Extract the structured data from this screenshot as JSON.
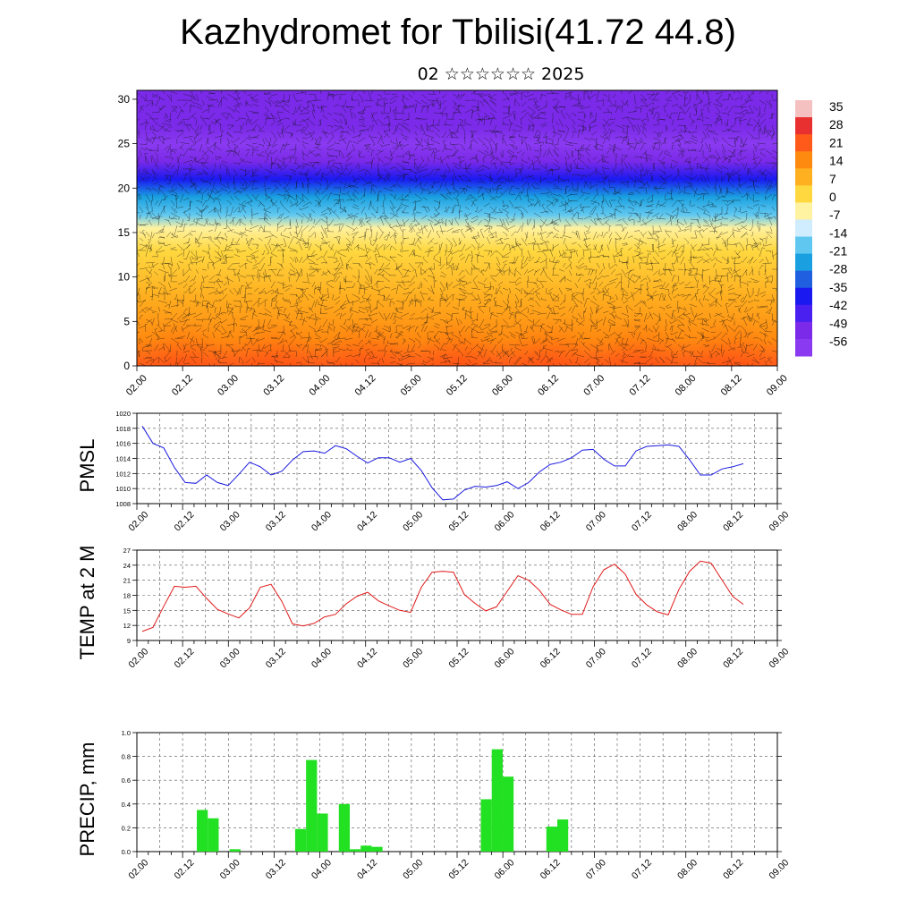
{
  "header": {
    "title": "Kazhydromet for Tbilisi(41.72 44.8)",
    "subtitle": "02 ☆☆☆☆☆☆ 2025"
  },
  "x_tick_labels": [
    "02.00",
    "02.12",
    "03.00",
    "03.12",
    "04.00",
    "04.12",
    "05.00",
    "05.12",
    "06.00",
    "06.12",
    "07.00",
    "07.12",
    "08.00",
    "08.12",
    "09.00"
  ],
  "chart_data": [
    {
      "type": "heatmap",
      "title": "",
      "xlabel": "",
      "ylabel": "",
      "ylim": [
        0,
        31
      ],
      "y_ticks": [
        0,
        5,
        10,
        15,
        20,
        25,
        30
      ],
      "colorbar_labels": [
        "35",
        "28",
        "21",
        "14",
        "7",
        "0",
        "-7",
        "-14",
        "-21",
        "-28",
        "-35",
        "-42",
        "-49",
        "-56"
      ],
      "colorbar_colors": [
        "#f4c0c0",
        "#e83030",
        "#ff5a1a",
        "#ff8a10",
        "#ffb020",
        "#ffd840",
        "#fff2a0",
        "#d0ecff",
        "#60c8f0",
        "#1aa0e0",
        "#2060e0",
        "#1a1af0",
        "#4a20f0",
        "#7a2ae8",
        "#8a3af0"
      ],
      "profile_by_height": [
        {
          "z": 0,
          "t": 26
        },
        {
          "z": 3,
          "t": 20
        },
        {
          "z": 8,
          "t": 11
        },
        {
          "z": 13,
          "t": 2
        },
        {
          "z": 15.5,
          "t": -6
        },
        {
          "z": 17,
          "t": -16
        },
        {
          "z": 19,
          "t": -28
        },
        {
          "z": 21,
          "t": -42
        },
        {
          "z": 23,
          "t": -55
        },
        {
          "z": 25,
          "t": -60
        },
        {
          "z": 27,
          "t": -58
        },
        {
          "z": 29,
          "t": -55
        },
        {
          "z": 31,
          "t": -52
        }
      ],
      "daytime_peaks": [
        "02.12",
        "03.12",
        "04.12",
        "05.12",
        "06.12",
        "07.12",
        "08.12"
      ],
      "wind_barbs": true
    },
    {
      "type": "line",
      "ylabel": "PMSL",
      "ylim": [
        1008,
        1020
      ],
      "y_ticks": [
        1008,
        1010,
        1012,
        1014,
        1016,
        1018,
        1020
      ],
      "color": "#1a1ae0",
      "x_start": "02.00",
      "x_step_hours": 3,
      "values": [
        1018.3,
        1016.0,
        1015.4,
        1012.8,
        1010.8,
        1010.7,
        1011.8,
        1010.8,
        1010.4,
        1011.9,
        1013.5,
        1012.9,
        1011.8,
        1012.3,
        1013.8,
        1014.9,
        1015.0,
        1014.7,
        1015.7,
        1015.3,
        1014.3,
        1013.4,
        1014.1,
        1014.1,
        1013.5,
        1014.0,
        1012.4,
        1010.1,
        1008.5,
        1008.6,
        1009.8,
        1010.3,
        1010.2,
        1010.4,
        1010.9,
        1010.0,
        1010.8,
        1012.2,
        1013.2,
        1013.5,
        1014.1,
        1015.1,
        1015.2,
        1013.9,
        1013.0,
        1013.0,
        1015.0,
        1015.6,
        1015.7,
        1015.8,
        1015.6,
        1013.8,
        1011.8,
        1011.8,
        1012.6,
        1012.9,
        1013.3
      ]
    },
    {
      "type": "line",
      "ylabel": "TEMP at 2 M",
      "ylim": [
        9,
        27
      ],
      "y_ticks": [
        9,
        12,
        15,
        18,
        21,
        24,
        27
      ],
      "color": "#e01a1a",
      "x_start": "02.00",
      "x_step_hours": 3,
      "values": [
        10.8,
        11.6,
        15.8,
        19.8,
        19.6,
        19.8,
        17.4,
        15.2,
        14.3,
        13.5,
        15.5,
        19.6,
        20.2,
        16.8,
        12.3,
        11.9,
        12.4,
        13.7,
        14.2,
        16.3,
        17.8,
        18.6,
        16.9,
        15.9,
        15.0,
        14.6,
        19.6,
        22.6,
        22.8,
        22.6,
        18.2,
        16.4,
        14.9,
        15.7,
        18.8,
        21.9,
        21.0,
        19.0,
        16.2,
        15.1,
        14.2,
        14.2,
        19.7,
        23.1,
        24.2,
        22.2,
        18.2,
        16.1,
        14.7,
        14.1,
        19.2,
        22.8,
        24.8,
        24.4,
        21.1,
        17.8,
        16.2
      ]
    },
    {
      "type": "bar",
      "ylabel": "PRECIP, mm",
      "ylim": [
        0,
        1.0
      ],
      "y_ticks": [
        "0.0",
        "0.2",
        "0.4",
        "0.6",
        "0.8",
        "1.0"
      ],
      "color": "#22e022",
      "x_start": "02.00",
      "x_step_hours": 3,
      "values": [
        0,
        0,
        0,
        0,
        0,
        0.35,
        0.28,
        0,
        0.02,
        0,
        0,
        0,
        0,
        0,
        0.19,
        0.77,
        0.32,
        0,
        0.4,
        0.02,
        0.05,
        0.04,
        0,
        0,
        0,
        0,
        0,
        0,
        0,
        0,
        0,
        0.44,
        0.86,
        0.63,
        0,
        0,
        0,
        0.21,
        0.27,
        0,
        0,
        0,
        0,
        0,
        0,
        0,
        0,
        0,
        0,
        0,
        0,
        0,
        0,
        0,
        0,
        0
      ]
    }
  ]
}
